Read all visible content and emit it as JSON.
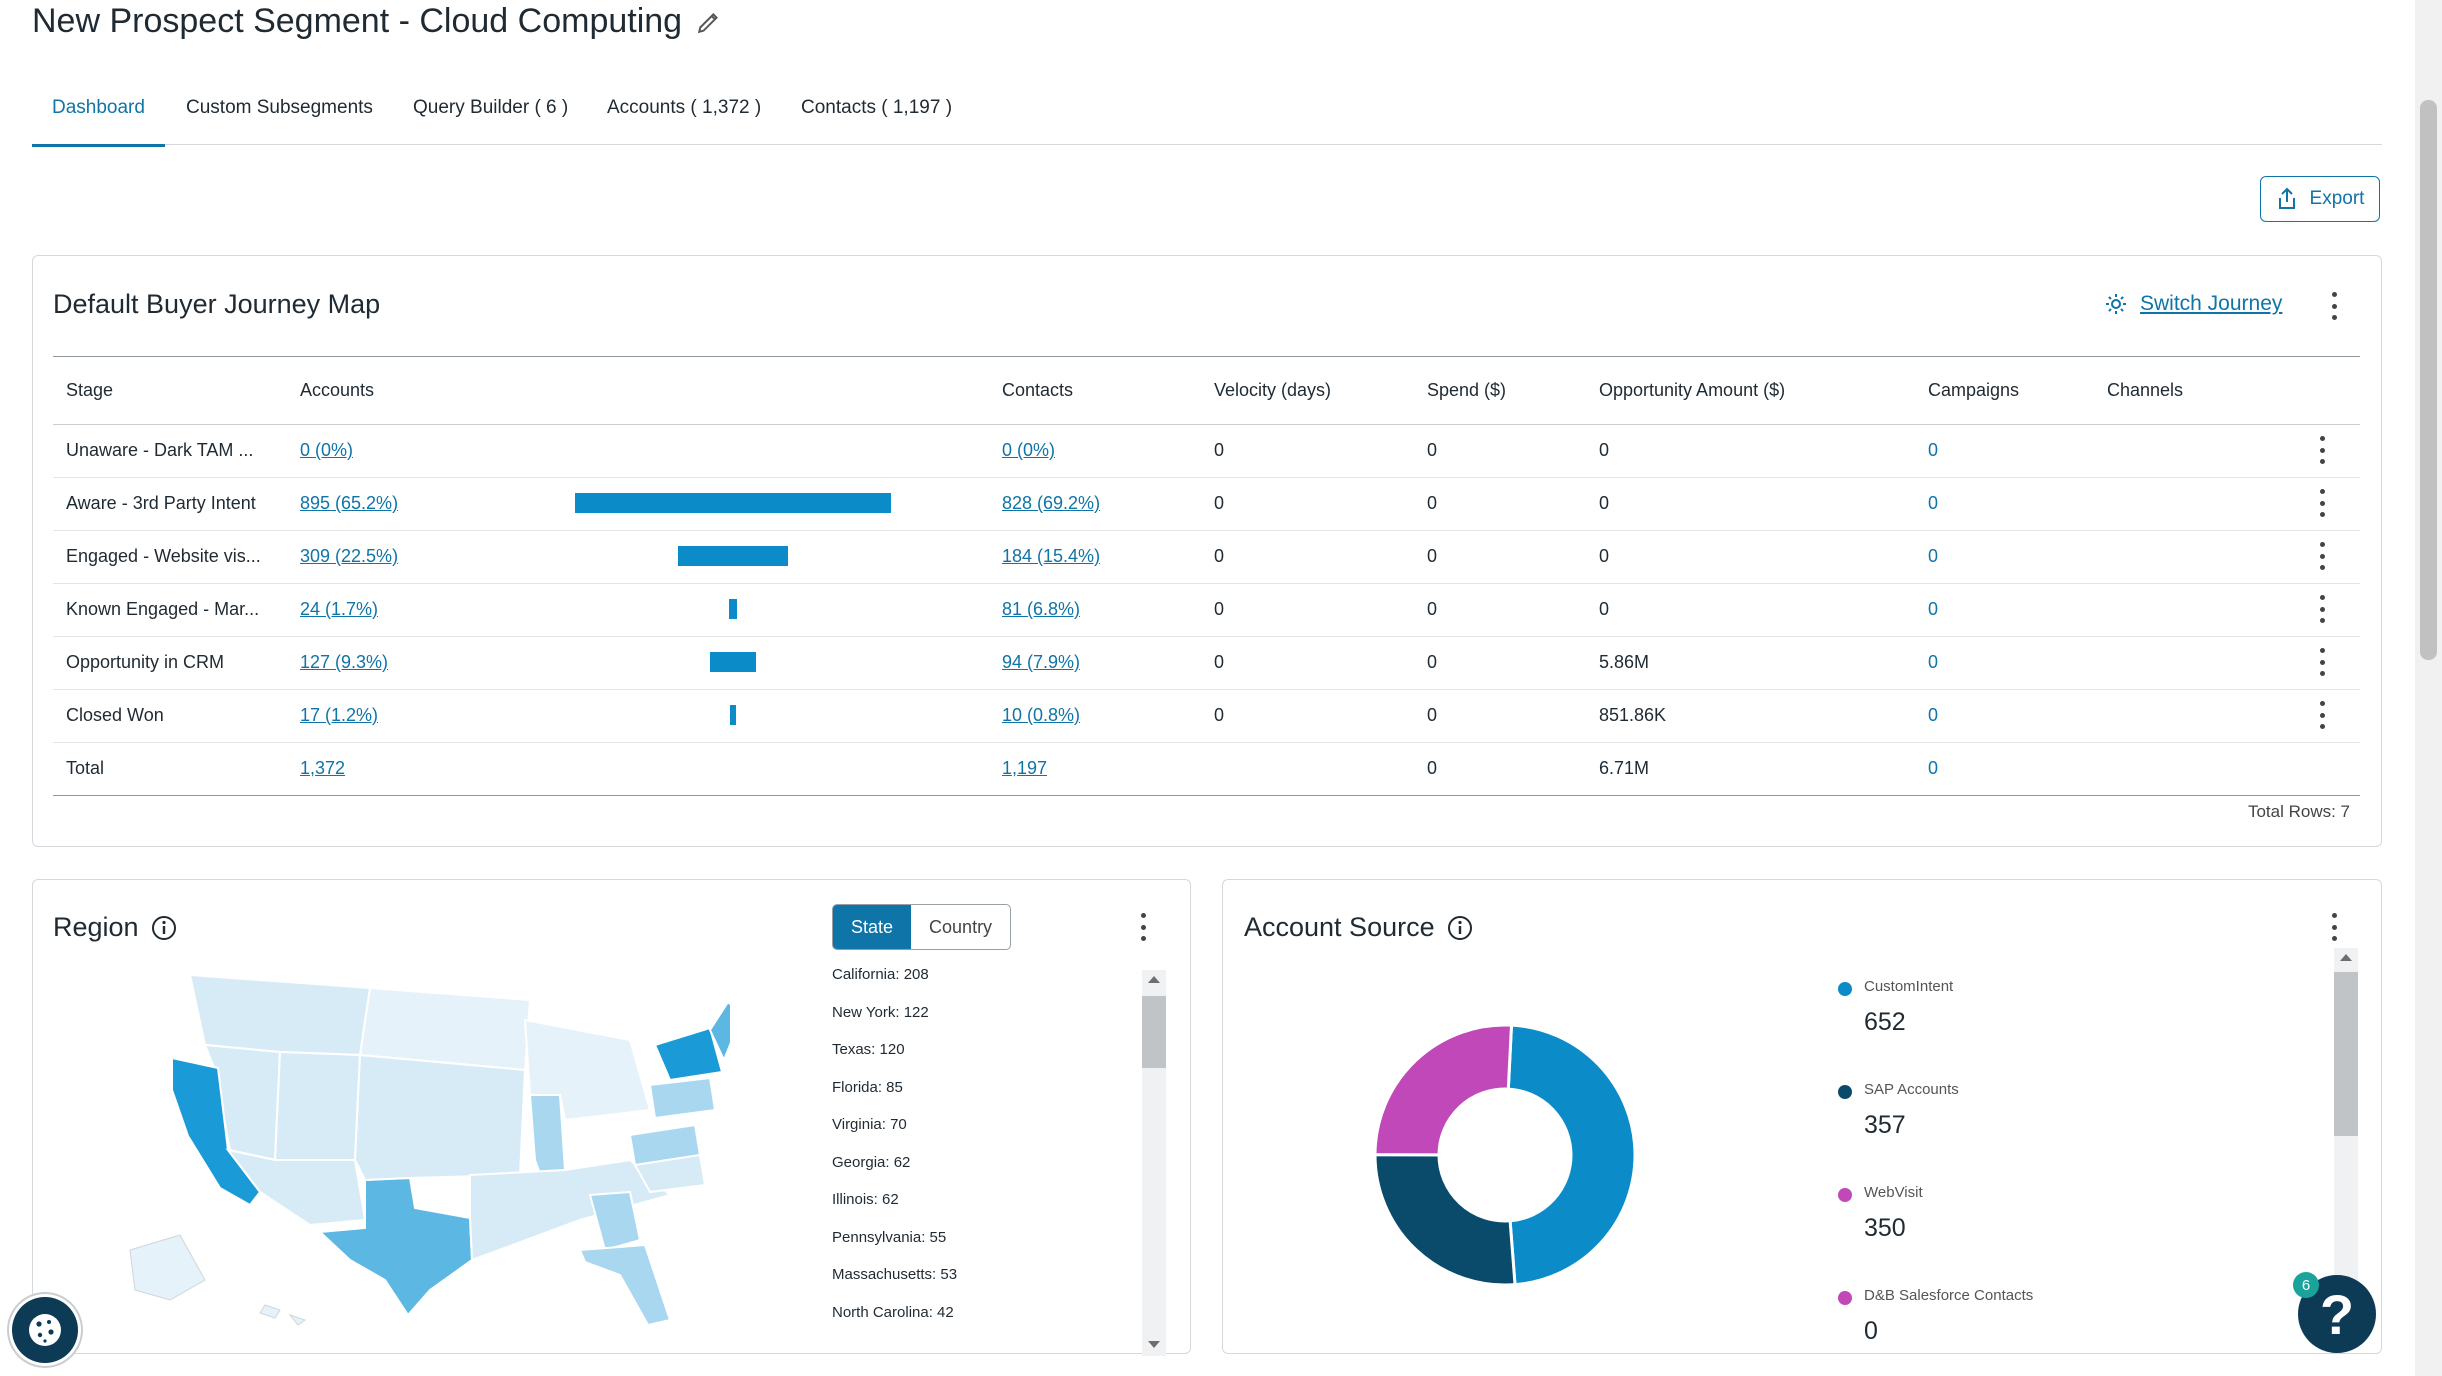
{
  "page": {
    "title": "New Prospect Segment - Cloud Computing",
    "export_label": "Export"
  },
  "tabs": [
    {
      "label": "Dashboard"
    },
    {
      "label": "Custom Subsegments"
    },
    {
      "label": "Query Builder ( 6 )"
    },
    {
      "label": "Accounts ( 1,372 )"
    },
    {
      "label": "Contacts ( 1,197 )"
    }
  ],
  "journey": {
    "title": "Default Buyer Journey Map",
    "switch_label": "Switch Journey",
    "columns": [
      "Stage",
      "Accounts",
      "Contacts",
      "Velocity (days)",
      "Spend ($)",
      "Opportunity Amount ($)",
      "Campaigns",
      "Channels"
    ],
    "rows": [
      {
        "stage": "Unaware - Dark TAM ...",
        "accounts": "0 (0%)",
        "account_pct": 0,
        "contacts": "0 (0%)",
        "velocity": "0",
        "spend": "0",
        "opportunity": "0",
        "campaigns": "0"
      },
      {
        "stage": "Aware - 3rd Party Intent",
        "accounts": "895 (65.2%)",
        "account_pct": 65.2,
        "contacts": "828 (69.2%)",
        "velocity": "0",
        "spend": "0",
        "opportunity": "0",
        "campaigns": "0"
      },
      {
        "stage": "Engaged - Website vis...",
        "accounts": "309 (22.5%)",
        "account_pct": 22.5,
        "contacts": "184 (15.4%)",
        "velocity": "0",
        "spend": "0",
        "opportunity": "0",
        "campaigns": "0"
      },
      {
        "stage": "Known Engaged - Mar...",
        "accounts": "24 (1.7%)",
        "account_pct": 1.7,
        "contacts": "81 (6.8%)",
        "velocity": "0",
        "spend": "0",
        "opportunity": "0",
        "campaigns": "0"
      },
      {
        "stage": "Opportunity in CRM",
        "accounts": "127 (9.3%)",
        "account_pct": 9.3,
        "contacts": "94 (7.9%)",
        "velocity": "0",
        "spend": "0",
        "opportunity": "5.86M",
        "campaigns": "0"
      },
      {
        "stage": "Closed Won",
        "accounts": "17 (1.2%)",
        "account_pct": 1.2,
        "contacts": "10 (0.8%)",
        "velocity": "0",
        "spend": "0",
        "opportunity": "851.86K",
        "campaigns": "0"
      }
    ],
    "total": {
      "label": "Total",
      "accounts": "1,372",
      "contacts": "1,197",
      "spend": "0",
      "opportunity": "6.71M",
      "campaigns": "0"
    },
    "total_rows": "Total Rows: 7"
  },
  "region": {
    "title": "Region",
    "toggle": [
      "State",
      "Country"
    ],
    "selected": "State",
    "items": [
      "California: 208",
      "New York: 122",
      "Texas: 120",
      "Florida: 85",
      "Virginia: 70",
      "Georgia: 62",
      "Illinois: 62",
      "Pennsylvania: 55",
      "Massachusetts: 53",
      "North Carolina: 42"
    ],
    "colors": {
      "high": "#1a9ad6",
      "mid": "#5cb8e3",
      "low": "#a8d7ef",
      "base": "#d7ebf6"
    }
  },
  "account_source": {
    "title": "Account Source",
    "legend": [
      {
        "name": "CustomIntent",
        "value": "652",
        "color": "#0b8bc8"
      },
      {
        "name": "SAP Accounts",
        "value": "357",
        "color": "#0a4a6b"
      },
      {
        "name": "WebVisit",
        "value": "350",
        "color": "#c048b8"
      },
      {
        "name": "D&B Salesforce Contacts",
        "value": "0",
        "color": "#c048b8"
      }
    ]
  },
  "help": {
    "badge": "6",
    "symbol": "?"
  }
}
